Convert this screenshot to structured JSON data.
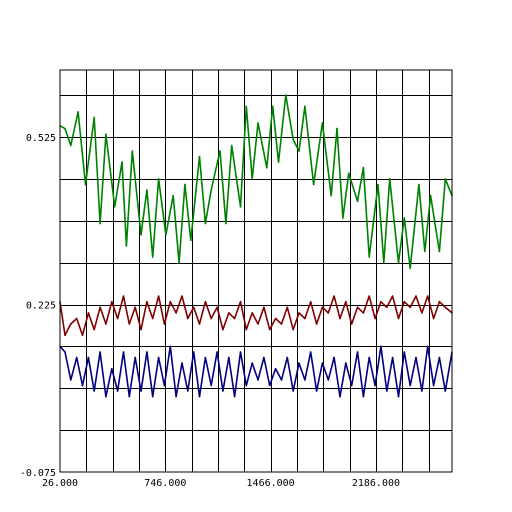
{
  "chart_data": {
    "type": "line",
    "title": "",
    "xlabel": "",
    "ylabel": "",
    "xlim": [
      26,
      2706
    ],
    "ylim": [
      -0.075,
      0.645
    ],
    "x_ticks": [
      {
        "value": 26,
        "label": "26.000"
      },
      {
        "value": 746,
        "label": "746.000"
      },
      {
        "value": 1466,
        "label": "1466.000"
      },
      {
        "value": 2186,
        "label": "2186.000"
      }
    ],
    "y_ticks": [
      {
        "value": -0.075,
        "label": "-0.075"
      },
      {
        "value": 0.225,
        "label": "0.225"
      },
      {
        "value": 0.525,
        "label": "0.525"
      }
    ],
    "grid": true,
    "grid_x_step": 180,
    "grid_y_step": 0.075,
    "series": [
      {
        "color": "#008000",
        "x": [
          26,
          60,
          100,
          150,
          200,
          260,
          300,
          340,
          400,
          450,
          480,
          520,
          580,
          620,
          660,
          700,
          750,
          800,
          840,
          880,
          920,
          980,
          1020,
          1060,
          1120,
          1160,
          1200,
          1260,
          1300,
          1340,
          1380,
          1440,
          1480,
          1520,
          1570,
          1620,
          1660,
          1700,
          1760,
          1820,
          1880,
          1920,
          1960,
          2000,
          2060,
          2100,
          2140,
          2200,
          2240,
          2280,
          2340,
          2380,
          2420,
          2480,
          2520,
          2560,
          2620,
          2660,
          2706
        ],
        "values": [
          0.545,
          0.54,
          0.51,
          0.57,
          0.44,
          0.56,
          0.37,
          0.53,
          0.4,
          0.48,
          0.33,
          0.5,
          0.35,
          0.43,
          0.31,
          0.45,
          0.35,
          0.42,
          0.3,
          0.44,
          0.34,
          0.49,
          0.37,
          0.43,
          0.5,
          0.37,
          0.51,
          0.4,
          0.58,
          0.45,
          0.55,
          0.47,
          0.58,
          0.48,
          0.6,
          0.52,
          0.5,
          0.58,
          0.44,
          0.55,
          0.42,
          0.54,
          0.38,
          0.46,
          0.41,
          0.47,
          0.31,
          0.44,
          0.3,
          0.45,
          0.3,
          0.38,
          0.29,
          0.44,
          0.32,
          0.42,
          0.32,
          0.45,
          0.42
        ]
      },
      {
        "color": "#800000",
        "x": [
          26,
          60,
          100,
          140,
          180,
          220,
          260,
          300,
          340,
          380,
          420,
          460,
          500,
          540,
          580,
          620,
          660,
          700,
          740,
          780,
          820,
          860,
          900,
          940,
          980,
          1020,
          1060,
          1100,
          1140,
          1180,
          1220,
          1260,
          1300,
          1340,
          1380,
          1420,
          1460,
          1500,
          1540,
          1580,
          1620,
          1660,
          1700,
          1740,
          1780,
          1820,
          1860,
          1900,
          1940,
          1980,
          2020,
          2060,
          2100,
          2140,
          2180,
          2220,
          2260,
          2300,
          2340,
          2380,
          2420,
          2460,
          2500,
          2540,
          2580,
          2620,
          2660,
          2706
        ],
        "values": [
          0.23,
          0.17,
          0.19,
          0.2,
          0.17,
          0.21,
          0.18,
          0.22,
          0.19,
          0.23,
          0.2,
          0.24,
          0.19,
          0.22,
          0.18,
          0.23,
          0.2,
          0.24,
          0.19,
          0.23,
          0.21,
          0.24,
          0.2,
          0.22,
          0.19,
          0.23,
          0.2,
          0.22,
          0.18,
          0.21,
          0.2,
          0.23,
          0.18,
          0.21,
          0.19,
          0.22,
          0.18,
          0.2,
          0.19,
          0.22,
          0.18,
          0.21,
          0.2,
          0.23,
          0.19,
          0.22,
          0.21,
          0.24,
          0.2,
          0.23,
          0.19,
          0.22,
          0.21,
          0.24,
          0.2,
          0.23,
          0.22,
          0.24,
          0.2,
          0.23,
          0.22,
          0.24,
          0.21,
          0.24,
          0.2,
          0.23,
          0.22,
          0.21
        ]
      },
      {
        "color": "#000080",
        "x": [
          26,
          60,
          100,
          140,
          180,
          220,
          260,
          300,
          340,
          380,
          420,
          460,
          500,
          540,
          580,
          620,
          660,
          700,
          740,
          780,
          820,
          860,
          900,
          940,
          980,
          1020,
          1060,
          1100,
          1140,
          1180,
          1220,
          1260,
          1300,
          1340,
          1380,
          1420,
          1460,
          1500,
          1540,
          1580,
          1620,
          1660,
          1700,
          1740,
          1780,
          1820,
          1860,
          1900,
          1940,
          1980,
          2020,
          2060,
          2100,
          2140,
          2180,
          2220,
          2260,
          2300,
          2340,
          2380,
          2420,
          2460,
          2500,
          2540,
          2580,
          2620,
          2660,
          2706
        ],
        "values": [
          0.15,
          0.14,
          0.09,
          0.13,
          0.08,
          0.13,
          0.07,
          0.14,
          0.06,
          0.11,
          0.07,
          0.14,
          0.06,
          0.13,
          0.07,
          0.14,
          0.06,
          0.13,
          0.08,
          0.15,
          0.06,
          0.12,
          0.07,
          0.14,
          0.06,
          0.13,
          0.08,
          0.14,
          0.07,
          0.13,
          0.06,
          0.14,
          0.08,
          0.12,
          0.09,
          0.13,
          0.08,
          0.11,
          0.09,
          0.13,
          0.07,
          0.12,
          0.09,
          0.14,
          0.07,
          0.12,
          0.09,
          0.13,
          0.06,
          0.12,
          0.08,
          0.14,
          0.06,
          0.13,
          0.08,
          0.15,
          0.07,
          0.13,
          0.06,
          0.14,
          0.08,
          0.13,
          0.07,
          0.15,
          0.08,
          0.13,
          0.07,
          0.14
        ]
      }
    ]
  }
}
